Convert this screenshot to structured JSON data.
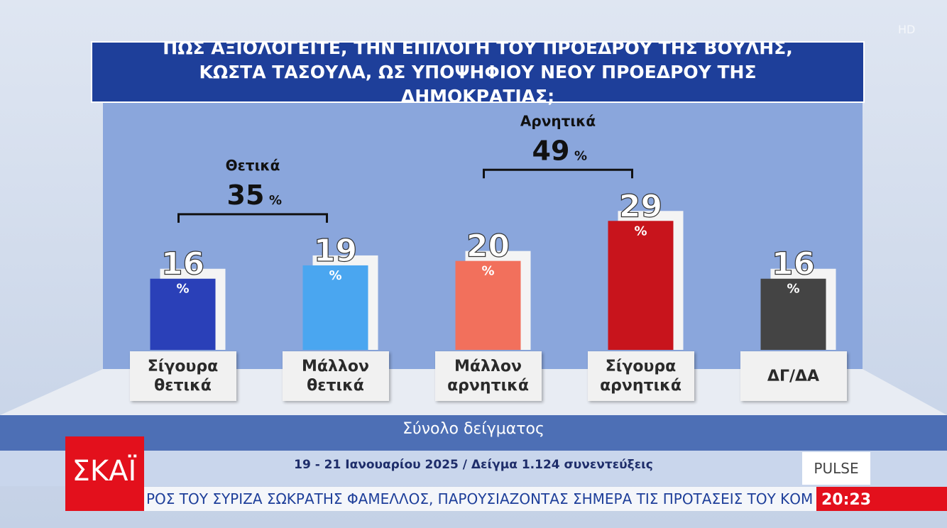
{
  "channel": {
    "badge": "HD",
    "logo": "ΣΚΑΪ",
    "pollster": "PULSE",
    "ticker": "ΡΟΣ ΤΟΥ ΣΥΡΙΖΑ ΣΩΚΡΑΤΗΣ ΦΑΜΕΛΛΟΣ, ΠΑΡΟΥΣΙΑΖΟΝΤΑΣ ΣΗΜΕΡΑ ΤΙΣ ΠΡΟΤΑΣΕΙΣ ΤΟΥ ΚΟΜ",
    "clock": "20:23"
  },
  "chart_data": {
    "type": "bar",
    "title": "ΠΩΣ ΑΞΙΟΛΟΓΕΙΤΕ, ΤΗΝ ΕΠΙΛΟΓΗ ΤΟΥ ΠΡΟΕΔΡΟΥ ΤΗΣ ΒΟΥΛΗΣ, ΚΩΣΤΑ ΤΑΣΟΥΛΑ, ΩΣ ΥΠΟΨΗΦΙΟΥ ΝΕΟΥ ΠΡΟΕΔΡΟΥ ΤΗΣ ΔΗΜΟΚΡΑΤΙΑΣ;",
    "subtitle": "Σύνολο δείγματος",
    "note": "19 - 21 Ιανουαρίου 2025 / Δείγμα 1.124 συνεντεύξεις",
    "unit": "%",
    "categories": [
      "Σίγουρα θετικά",
      "Μάλλον θετικά",
      "Μάλλον αρνητικά",
      "Σίγουρα αρνητικά",
      "ΔΓ/ΔΑ"
    ],
    "values": [
      16,
      19,
      20,
      29,
      16
    ],
    "colors": [
      "#2a40b8",
      "#4aa6f0",
      "#f2705c",
      "#c8141c",
      "#444444"
    ],
    "groups": [
      {
        "label": "Θετικά",
        "value": 35
      },
      {
        "label": "Αρνητικά",
        "value": 49
      }
    ],
    "ylim": [
      0,
      30
    ]
  }
}
